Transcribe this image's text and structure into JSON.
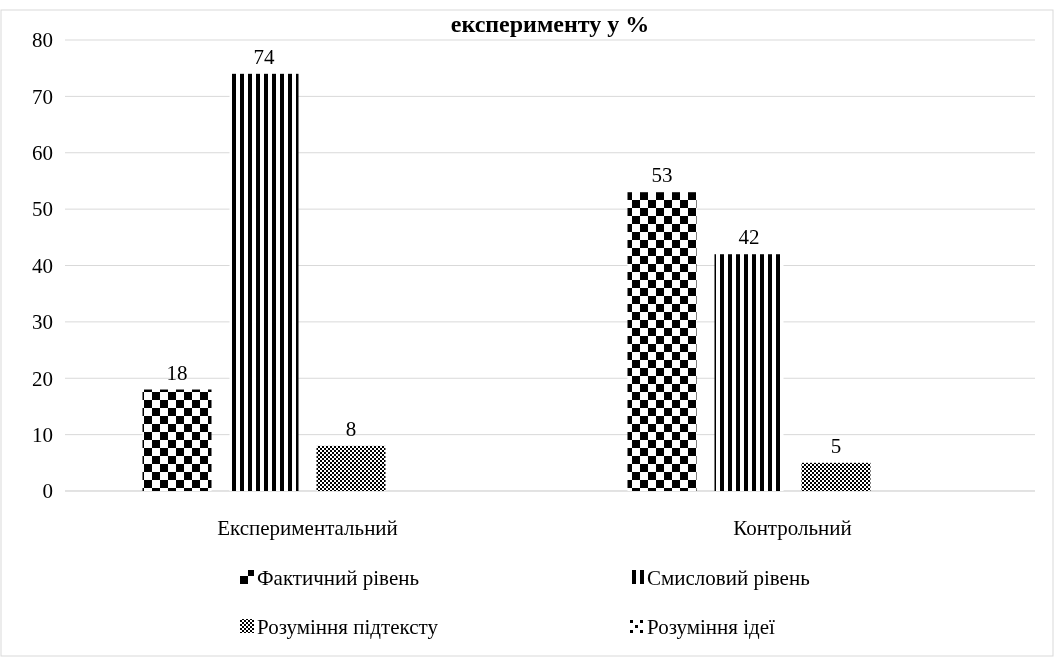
{
  "chart_data": {
    "type": "bar",
    "title": "експерименту у %",
    "categories": [
      "Експериментальний",
      "Контрольний"
    ],
    "series": [
      {
        "name": "Фактичний рівень",
        "color": "#000000",
        "values": [
          18,
          53
        ]
      },
      {
        "name": "Смисловий рівень",
        "color": "#000000",
        "values": [
          74,
          42
        ]
      },
      {
        "name": "Розуміння підтексту",
        "color": "#000000",
        "values": [
          8,
          5
        ]
      },
      {
        "name": "Розуміння ідеї",
        "color": "#000000",
        "values": [
          null,
          null
        ]
      }
    ],
    "ylim": [
      0,
      80
    ],
    "yticks": [
      0,
      10,
      20,
      30,
      40,
      50,
      60,
      70,
      80
    ],
    "grid": "y",
    "data_labels": true,
    "legend": "bottom"
  }
}
